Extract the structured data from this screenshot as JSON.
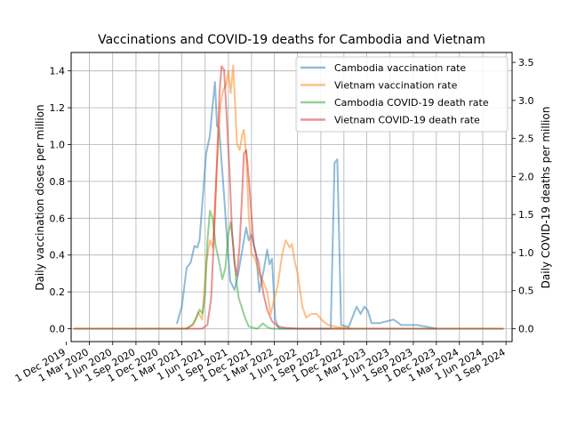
{
  "chart_data": {
    "type": "line",
    "title": "Vaccinations and COVID-19 deaths for Cambodia and Vietnam",
    "xlabel": "",
    "ylabel": "Daily vaccination doses per million",
    "y2label": "Daily COVID-19 deaths per million",
    "xlim": [
      "2019-12-20",
      "2024-09-25"
    ],
    "ylim": [
      -0.07,
      1.5
    ],
    "y2lim": [
      -0.17,
      3.63
    ],
    "grid": true,
    "legend_position": "upper-right",
    "xticks": [
      {
        "date": "2019-12-01",
        "label": "1 Dec 2019"
      },
      {
        "date": "2020-03-01",
        "label": "1 Mar 2020"
      },
      {
        "date": "2020-06-01",
        "label": "1 Jun 2020"
      },
      {
        "date": "2020-09-01",
        "label": "1 Sep 2020"
      },
      {
        "date": "2020-12-01",
        "label": "1 Dec 2020"
      },
      {
        "date": "2021-03-01",
        "label": "1 Mar 2021"
      },
      {
        "date": "2021-06-01",
        "label": "1 Jun 2021"
      },
      {
        "date": "2021-09-01",
        "label": "1 Sep 2021"
      },
      {
        "date": "2021-12-01",
        "label": "1 Dec 2021"
      },
      {
        "date": "2022-03-01",
        "label": "1 Mar 2022"
      },
      {
        "date": "2022-06-01",
        "label": "1 Jun 2022"
      },
      {
        "date": "2022-09-01",
        "label": "1 Sep 2022"
      },
      {
        "date": "2022-12-01",
        "label": "1 Dec 2022"
      },
      {
        "date": "2023-03-01",
        "label": "1 Mar 2023"
      },
      {
        "date": "2023-06-01",
        "label": "1 Jun 2023"
      },
      {
        "date": "2023-09-01",
        "label": "1 Sep 2023"
      },
      {
        "date": "2023-12-01",
        "label": "1 Dec 2023"
      },
      {
        "date": "2024-03-01",
        "label": "1 Mar 2024"
      },
      {
        "date": "2024-06-01",
        "label": "1 Jun 2024"
      },
      {
        "date": "2024-09-01",
        "label": "1 Sep 2024"
      }
    ],
    "yticks": [
      {
        "value": 0.0,
        "label": "0.0"
      },
      {
        "value": 0.2,
        "label": "0.2"
      },
      {
        "value": 0.4,
        "label": "0.4"
      },
      {
        "value": 0.6,
        "label": "0.6"
      },
      {
        "value": 0.8,
        "label": "0.8"
      },
      {
        "value": 1.0,
        "label": "1.0"
      },
      {
        "value": 1.2,
        "label": "1.2"
      },
      {
        "value": 1.4,
        "label": "1.4"
      }
    ],
    "y2ticks": [
      {
        "value": 0.0,
        "label": "0.0"
      },
      {
        "value": 0.5,
        "label": "0.5"
      },
      {
        "value": 1.0,
        "label": "1.0"
      },
      {
        "value": 1.5,
        "label": "1.5"
      },
      {
        "value": 2.0,
        "label": "2.0"
      },
      {
        "value": 2.5,
        "label": "2.5"
      },
      {
        "value": 3.0,
        "label": "3.0"
      },
      {
        "value": 3.5,
        "label": "3.5"
      }
    ],
    "series": [
      {
        "name": "Cambodia vaccination rate",
        "axis": "left",
        "color": "#1f77b4",
        "points": [
          [
            "2021-02-10",
            0.03
          ],
          [
            "2021-03-01",
            0.12
          ],
          [
            "2021-03-20",
            0.33
          ],
          [
            "2021-04-05",
            0.36
          ],
          [
            "2021-04-20",
            0.45
          ],
          [
            "2021-05-01",
            0.44
          ],
          [
            "2021-05-10",
            0.48
          ],
          [
            "2021-05-22",
            0.7
          ],
          [
            "2021-06-05",
            0.95
          ],
          [
            "2021-06-20",
            1.05
          ],
          [
            "2021-07-01",
            1.22
          ],
          [
            "2021-07-10",
            1.34
          ],
          [
            "2021-07-18",
            1.1
          ],
          [
            "2021-07-26",
            1.09
          ],
          [
            "2021-08-01",
            0.98
          ],
          [
            "2021-08-15",
            0.72
          ],
          [
            "2021-08-25",
            0.52
          ],
          [
            "2021-09-08",
            0.26
          ],
          [
            "2021-09-25",
            0.21
          ],
          [
            "2021-10-10",
            0.3
          ],
          [
            "2021-11-01",
            0.48
          ],
          [
            "2021-11-10",
            0.55
          ],
          [
            "2021-11-20",
            0.48
          ],
          [
            "2021-12-01",
            0.51
          ],
          [
            "2021-12-20",
            0.4
          ],
          [
            "2022-01-01",
            0.2
          ],
          [
            "2022-01-20",
            0.33
          ],
          [
            "2022-02-01",
            0.43
          ],
          [
            "2022-02-10",
            0.35
          ],
          [
            "2022-02-20",
            0.38
          ],
          [
            "2022-03-05",
            0.05
          ],
          [
            "2022-03-20",
            0.0
          ],
          [
            "2022-10-10",
            0.0
          ],
          [
            "2022-10-25",
            0.9
          ],
          [
            "2022-11-05",
            0.92
          ],
          [
            "2022-11-20",
            0.02
          ],
          [
            "2022-12-20",
            0.01
          ],
          [
            "2023-01-20",
            0.12
          ],
          [
            "2023-02-05",
            0.08
          ],
          [
            "2023-02-20",
            0.12
          ],
          [
            "2023-03-05",
            0.1
          ],
          [
            "2023-03-20",
            0.03
          ],
          [
            "2023-04-20",
            0.03
          ],
          [
            "2023-06-15",
            0.05
          ],
          [
            "2023-07-15",
            0.02
          ],
          [
            "2023-09-15",
            0.02
          ],
          [
            "2023-10-25",
            0.01
          ],
          [
            "2023-12-01",
            0.0
          ]
        ]
      },
      {
        "name": "Vietnam vaccination rate",
        "axis": "left",
        "color": "#ff7f0e",
        "points": [
          [
            "2021-03-15",
            0.0
          ],
          [
            "2021-04-15",
            0.02
          ],
          [
            "2021-05-05",
            0.09
          ],
          [
            "2021-05-20",
            0.05
          ],
          [
            "2021-06-05",
            0.35
          ],
          [
            "2021-06-20",
            0.48
          ],
          [
            "2021-07-01",
            0.44
          ],
          [
            "2021-07-15",
            0.82
          ],
          [
            "2021-08-01",
            1.22
          ],
          [
            "2021-08-12",
            1.3
          ],
          [
            "2021-08-22",
            1.32
          ],
          [
            "2021-09-01",
            1.4
          ],
          [
            "2021-09-10",
            1.28
          ],
          [
            "2021-09-20",
            1.43
          ],
          [
            "2021-09-28",
            1.2
          ],
          [
            "2021-10-05",
            1.0
          ],
          [
            "2021-10-15",
            0.97
          ],
          [
            "2021-10-25",
            1.05
          ],
          [
            "2021-11-01",
            1.08
          ],
          [
            "2021-11-10",
            0.95
          ],
          [
            "2021-11-20",
            0.62
          ],
          [
            "2021-12-01",
            0.41
          ],
          [
            "2021-12-15",
            0.38
          ],
          [
            "2022-01-01",
            0.3
          ],
          [
            "2022-01-15",
            0.26
          ],
          [
            "2022-02-01",
            0.2
          ],
          [
            "2022-02-15",
            0.08
          ],
          [
            "2022-03-01",
            0.16
          ],
          [
            "2022-03-15",
            0.24
          ],
          [
            "2022-04-01",
            0.4
          ],
          [
            "2022-04-15",
            0.48
          ],
          [
            "2022-05-01",
            0.44
          ],
          [
            "2022-05-10",
            0.46
          ],
          [
            "2022-05-20",
            0.37
          ],
          [
            "2022-06-01",
            0.3
          ],
          [
            "2022-06-20",
            0.12
          ],
          [
            "2022-07-05",
            0.06
          ],
          [
            "2022-07-25",
            0.08
          ],
          [
            "2022-08-15",
            0.08
          ],
          [
            "2022-09-10",
            0.04
          ],
          [
            "2022-10-01",
            0.02
          ],
          [
            "2022-11-01",
            0.01
          ],
          [
            "2023-01-01",
            0.0
          ]
        ]
      },
      {
        "name": "Cambodia COVID-19 death rate",
        "axis": "right",
        "color": "#2ca02c",
        "points": [
          [
            "2020-01-01",
            0.0
          ],
          [
            "2021-03-20",
            0.0
          ],
          [
            "2021-04-10",
            0.05
          ],
          [
            "2021-04-25",
            0.12
          ],
          [
            "2021-05-10",
            0.25
          ],
          [
            "2021-05-22",
            0.2
          ],
          [
            "2021-06-01",
            0.45
          ],
          [
            "2021-06-10",
            1.15
          ],
          [
            "2021-06-20",
            1.55
          ],
          [
            "2021-07-01",
            1.45
          ],
          [
            "2021-07-12",
            1.1
          ],
          [
            "2021-07-25",
            0.9
          ],
          [
            "2021-08-08",
            0.65
          ],
          [
            "2021-08-20",
            0.8
          ],
          [
            "2021-09-01",
            1.25
          ],
          [
            "2021-09-10",
            1.4
          ],
          [
            "2021-09-20",
            1.1
          ],
          [
            "2021-10-01",
            0.65
          ],
          [
            "2021-10-12",
            0.4
          ],
          [
            "2021-10-22",
            0.3
          ],
          [
            "2021-11-05",
            0.15
          ],
          [
            "2021-11-20",
            0.03
          ],
          [
            "2021-12-10",
            0.01
          ],
          [
            "2021-12-25",
            0.0
          ],
          [
            "2022-01-15",
            0.07
          ],
          [
            "2022-02-01",
            0.02
          ],
          [
            "2022-02-20",
            0.0
          ],
          [
            "2024-08-20",
            0.0
          ]
        ]
      },
      {
        "name": "Vietnam COVID-19 death rate",
        "axis": "right",
        "color": "#d62728",
        "points": [
          [
            "2020-01-01",
            0.0
          ],
          [
            "2021-05-20",
            0.0
          ],
          [
            "2021-06-10",
            0.05
          ],
          [
            "2021-06-25",
            0.4
          ],
          [
            "2021-07-10",
            1.5
          ],
          [
            "2021-07-20",
            2.4
          ],
          [
            "2021-07-28",
            3.1
          ],
          [
            "2021-08-05",
            3.45
          ],
          [
            "2021-08-15",
            3.4
          ],
          [
            "2021-08-25",
            2.8
          ],
          [
            "2021-09-05",
            2.1
          ],
          [
            "2021-09-15",
            1.3
          ],
          [
            "2021-09-25",
            0.85
          ],
          [
            "2021-10-05",
            0.7
          ],
          [
            "2021-10-15",
            1.1
          ],
          [
            "2021-10-25",
            1.75
          ],
          [
            "2021-11-01",
            2.3
          ],
          [
            "2021-11-10",
            2.35
          ],
          [
            "2021-11-20",
            2.0
          ],
          [
            "2021-12-01",
            1.5
          ],
          [
            "2021-12-10",
            1.1
          ],
          [
            "2021-12-20",
            0.95
          ],
          [
            "2021-12-28",
            0.9
          ],
          [
            "2022-01-08",
            0.65
          ],
          [
            "2022-01-18",
            0.45
          ],
          [
            "2022-02-01",
            0.25
          ],
          [
            "2022-02-20",
            0.1
          ],
          [
            "2022-03-15",
            0.03
          ],
          [
            "2022-04-15",
            0.01
          ],
          [
            "2022-06-01",
            0.0
          ],
          [
            "2024-08-20",
            0.0
          ]
        ]
      }
    ]
  }
}
